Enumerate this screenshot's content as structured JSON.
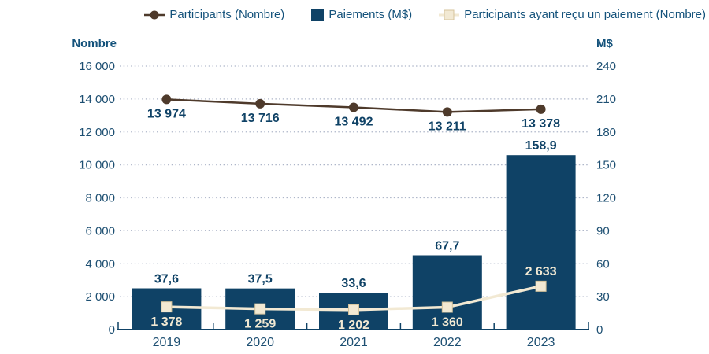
{
  "colors": {
    "bar_navy": "#0F4266",
    "tick_text": "#1D4F72",
    "legend_text": "#14527B",
    "data_label_navy": "#0F4266",
    "line_brown": "#4E3A2B",
    "line_cream": "#F2E9D3",
    "cream_marker_border": "#D5C39B",
    "gridline": "#AEB6C9",
    "axis_line": "#0F4266"
  },
  "legend": [
    {
      "label": "Participants (Nombre)",
      "marker": "circle-line"
    },
    {
      "label": "Paiements (M$)",
      "marker": "square"
    },
    {
      "label": "Participants ayant reçu un paiement (Nombre)",
      "marker": "square-line"
    }
  ],
  "chart_data": {
    "type": "composed",
    "categories": [
      "2019",
      "2020",
      "2021",
      "2022",
      "2023"
    ],
    "left_axis": {
      "title": "Nombre",
      "min": 0,
      "max": 16000,
      "step": 2000,
      "tick_labels": [
        "0",
        "2 000",
        "4 000",
        "6 000",
        "8 000",
        "10 000",
        "12 000",
        "14 000",
        "16 000"
      ]
    },
    "right_axis": {
      "title": "M$",
      "min": 0,
      "max": 240,
      "step": 30,
      "tick_labels": [
        "0",
        "30",
        "60",
        "90",
        "120",
        "150",
        "180",
        "210",
        "240"
      ]
    },
    "grid": "dotted-horizontal",
    "legend_position": "top",
    "series": [
      {
        "name": "Participants (Nombre)",
        "type": "line",
        "axis": "left",
        "values": [
          13974,
          13716,
          13492,
          13211,
          13378
        ],
        "labels": [
          "13 974",
          "13 716",
          "13 492",
          "13 211",
          "13 378"
        ],
        "label_positions": [
          "below",
          "below",
          "below",
          "below",
          "below"
        ]
      },
      {
        "name": "Paiements (M$)",
        "type": "bar",
        "axis": "right",
        "values": [
          37.6,
          37.5,
          33.6,
          67.7,
          158.9
        ],
        "labels": [
          "37,6",
          "37,5",
          "33,6",
          "67,7",
          "158,9"
        ]
      },
      {
        "name": "Participants ayant reçu un paiement (Nombre)",
        "type": "line",
        "axis": "left",
        "values": [
          1378,
          1259,
          1202,
          1360,
          2633
        ],
        "labels": [
          "1 378",
          "1 259",
          "1 202",
          "1 360",
          "2 633"
        ],
        "label_positions": [
          "below",
          "below",
          "below",
          "below",
          "above"
        ]
      }
    ]
  }
}
